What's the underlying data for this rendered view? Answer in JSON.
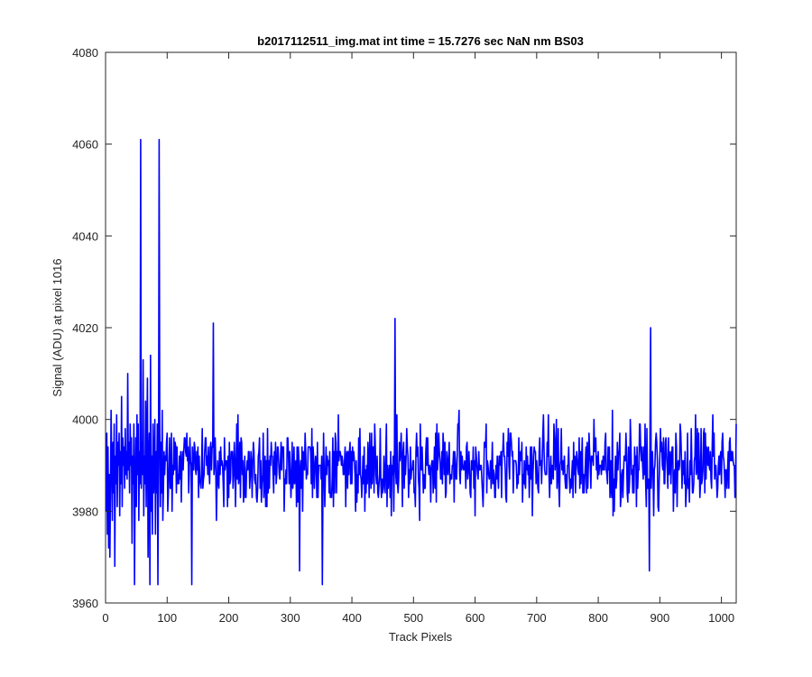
{
  "chart_data": {
    "type": "line",
    "title": "b2017112511_img.mat int time = 15.7276 sec  NaN nm BS03",
    "xlabel": "Track Pixels",
    "ylabel": "Signal (ADU) at pixel 1016",
    "xlim": [
      0,
      1024
    ],
    "ylim": [
      3960,
      4080
    ],
    "xticks": [
      "0",
      "100",
      "200",
      "300",
      "400",
      "500",
      "600",
      "700",
      "800",
      "900",
      "1000"
    ],
    "yticks": [
      "3960",
      "3980",
      "4000",
      "4020",
      "4040",
      "4060",
      "4080"
    ],
    "grid": false,
    "line_color": "#0000ff",
    "series": [
      {
        "name": "",
        "x_start": 1,
        "x_step": 1,
        "baseline_mean": 3990,
        "noise_range": [
          3964,
          4022
        ],
        "values": [
          3980,
          3997,
          3975,
          3994,
          3972,
          3988,
          3970,
          3985,
          4002,
          3990,
          3978,
          3995,
          3984,
          3999,
          3968,
          3992,
          3986,
          4001,
          3981,
          3995,
          3990,
          3997,
          3979,
          3993,
          3986,
          4005,
          3981,
          3996,
          3990,
          3994,
          3985,
          3998,
          3988,
          3993,
          3987,
          4010,
          3989,
          3995,
          3984,
          3999,
          3990,
          3996,
          3973,
          3992,
          3986,
          3999,
          3964,
          3985,
          3996,
          3981,
          4001,
          3988,
          3999,
          3978,
          3993,
          3986,
          4061,
          3985,
          3995,
          3988,
          4013,
          3979,
          3992,
          3986,
          4004,
          3981,
          3996,
          4009,
          3970,
          3990,
          3997,
          3986,
          4014,
          3980,
          3992,
          3975,
          3999,
          3984,
          3987,
          4000,
          3975,
          3993,
          3984,
          3999,
          3964,
          3990,
          3986,
          3998,
          3981,
          3995
        ],
        "spikes": [
          {
            "x": 87,
            "value": 4061
          },
          {
            "x": 175,
            "value": 4021
          },
          {
            "x": 470,
            "value": 4022
          },
          {
            "x": 885,
            "value": 4020
          },
          {
            "x": 140,
            "value": 3964
          },
          {
            "x": 72,
            "value": 3964
          },
          {
            "x": 315,
            "value": 3967
          },
          {
            "x": 352,
            "value": 3964
          },
          {
            "x": 883,
            "value": 3967
          }
        ]
      }
    ]
  }
}
